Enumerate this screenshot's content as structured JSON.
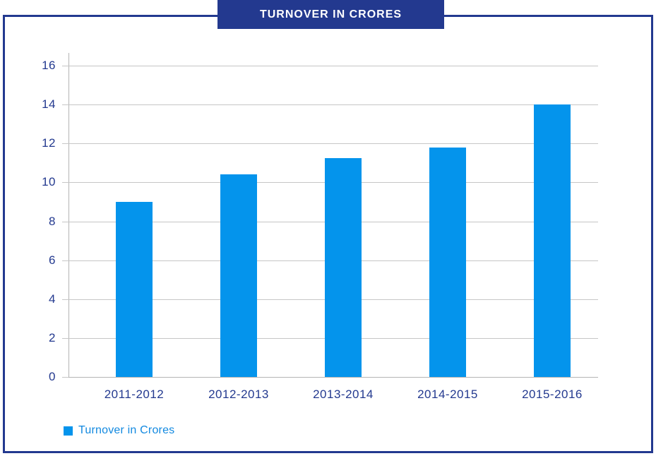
{
  "page": {
    "banner_title": "TURNOVER IN CRORES"
  },
  "legend": {
    "label": "Turnover in Crores"
  },
  "colors": {
    "navy": "#23398f",
    "bar": "#0494ec",
    "legend_text": "#1289e0",
    "gridline": "#c6c6c6",
    "axis_line": "#b4b4b4"
  },
  "chart_data": {
    "type": "bar",
    "title": "TURNOVER IN CRORES",
    "categories": [
      "2011-2012",
      "2012-2013",
      "2013-2014",
      "2014-2015",
      "2015-2016"
    ],
    "series": [
      {
        "name": "Turnover in Crores",
        "values": [
          9,
          10.4,
          11.25,
          11.8,
          14
        ]
      }
    ],
    "xlabel": "",
    "ylabel": "",
    "ylim": [
      0,
      16
    ],
    "yticks": [
      0,
      2,
      4,
      6,
      8,
      10,
      12,
      14,
      16
    ],
    "grid": true,
    "legend_position": "bottom-left",
    "bar_color": "#0494ec"
  }
}
